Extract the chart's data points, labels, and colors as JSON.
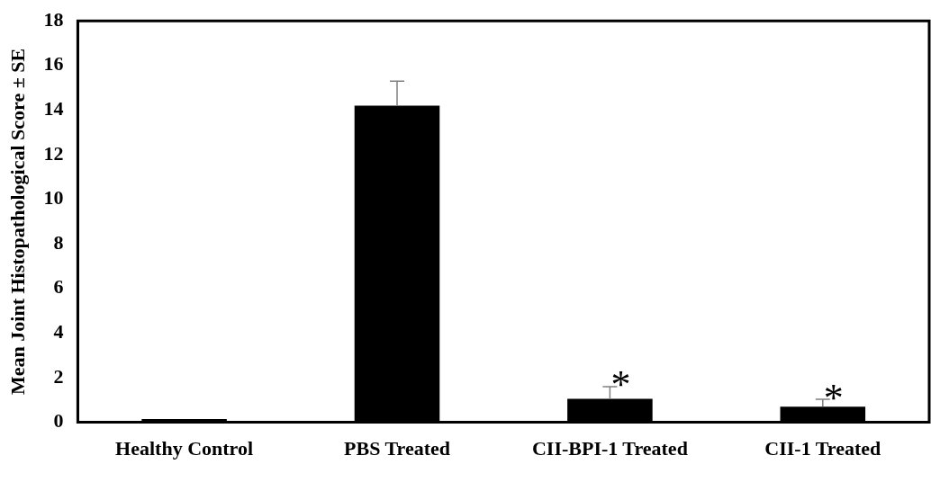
{
  "chart_data": {
    "type": "bar",
    "ylabel": "Mean Joint Histopathological Score ± SE",
    "categories": [
      "Healthy Control",
      "PBS Treated",
      "CII-BPI-1 Treated",
      "CII-1 Treated"
    ],
    "values": [
      0.15,
      14.2,
      1.05,
      0.7
    ],
    "errors": [
      null,
      1.1,
      0.55,
      0.33
    ],
    "color": "#000000",
    "ylim": [
      0,
      18
    ],
    "yticks": [
      0,
      2,
      4,
      6,
      8,
      10,
      12,
      14,
      16,
      18
    ],
    "grid": false,
    "legend": false,
    "annotations": [
      {
        "text": "*",
        "x": "CII-BPI-1 Treated",
        "y": 1.6
      },
      {
        "text": "*",
        "x": "CII-1 Treated",
        "y": 1.0
      }
    ]
  }
}
